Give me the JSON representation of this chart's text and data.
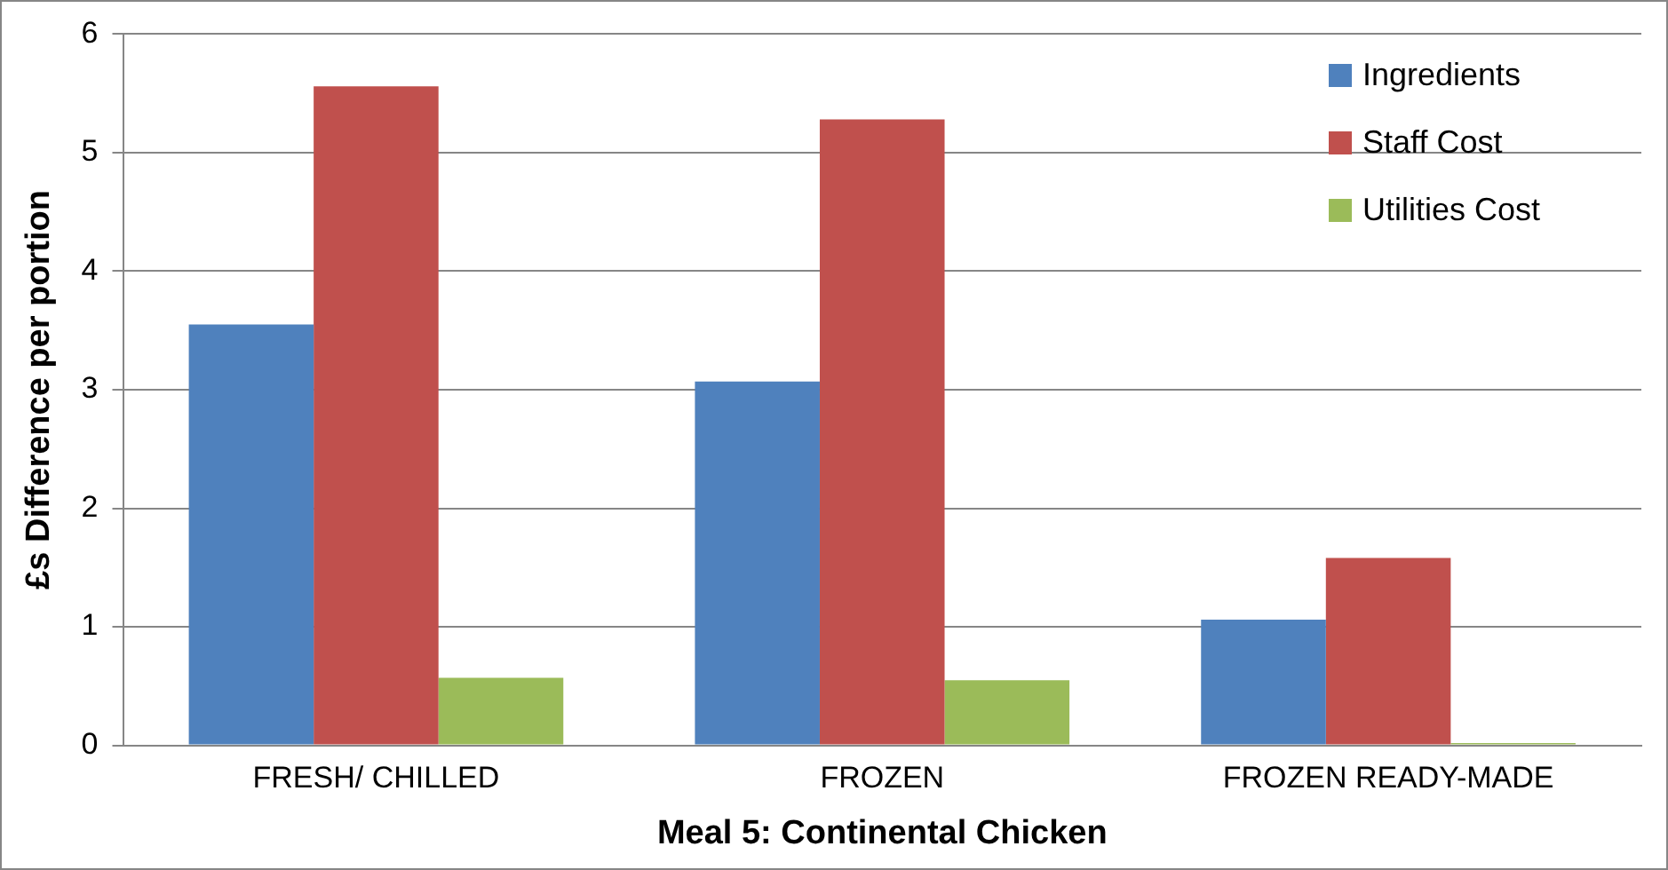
{
  "chart_data": {
    "type": "bar",
    "xlabel": "Meal 5: Continental Chicken",
    "ylabel": "£s Difference per portion",
    "categories": [
      "FRESH/ CHILLED",
      "FROZEN",
      "FROZEN READY-MADE"
    ],
    "series": [
      {
        "name": "Ingredients",
        "color": "#4f81bd",
        "values": [
          3.55,
          3.07,
          1.06
        ]
      },
      {
        "name": "Staff Cost",
        "color": "#c0504d",
        "values": [
          5.56,
          5.28,
          1.58
        ]
      },
      {
        "name": "Utilities Cost",
        "color": "#9bbb59",
        "values": [
          0.57,
          0.55,
          0.02
        ]
      }
    ],
    "ylim": [
      0,
      6
    ],
    "yticks": [
      0,
      1,
      2,
      3,
      4,
      5,
      6
    ],
    "grid": "y",
    "legend": "top right"
  }
}
